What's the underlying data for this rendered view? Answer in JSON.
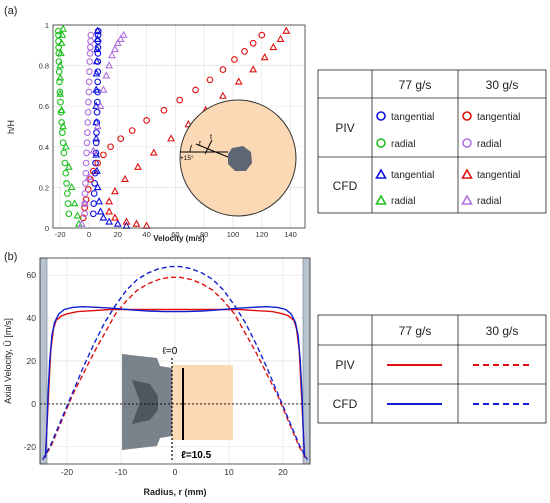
{
  "chart_data": [
    {
      "panel_label": "(a)",
      "type": "scatter",
      "xlabel": "Velocity (m/s)",
      "ylabel": "h/H",
      "xlim": [
        -25,
        150
      ],
      "ylim": [
        0,
        1
      ],
      "x_ticks": [
        "-20",
        "0",
        "20",
        "40",
        "60",
        "80",
        "100",
        "120",
        "140"
      ],
      "y_ticks": [
        "0",
        "0.2",
        "0.4",
        "0.6",
        "0.8",
        "1"
      ],
      "grid": true,
      "series": [
        {
          "method": "PIV",
          "flow": "77 g/s",
          "component": "tangential",
          "color": "#1010e0",
          "marker": "circle",
          "x": [
            3,
            3.3,
            3.6,
            3.9,
            4.2,
            4.5,
            4.8,
            5,
            5.2,
            5.4,
            5.6,
            5.8,
            6,
            6,
            6.1,
            6.1,
            6.2,
            6.2,
            6.3,
            6.3,
            6.4
          ],
          "y": [
            0.07,
            0.12,
            0.17,
            0.22,
            0.27,
            0.32,
            0.37,
            0.42,
            0.47,
            0.52,
            0.57,
            0.62,
            0.67,
            0.72,
            0.77,
            0.82,
            0.86,
            0.89,
            0.92,
            0.95,
            0.97
          ]
        },
        {
          "method": "PIV",
          "flow": "77 g/s",
          "component": "radial",
          "color": "#20c020",
          "marker": "circle",
          "x": [
            -14,
            -14.5,
            -15,
            -15.6,
            -16.2,
            -16.8,
            -17.4,
            -18,
            -18.5,
            -19,
            -19.4,
            -19.8,
            -20.2,
            -20.5,
            -20.7,
            -20.9,
            -21,
            -21.1,
            -21.2,
            -21.2,
            -21.3
          ],
          "y": [
            0.07,
            0.12,
            0.17,
            0.22,
            0.27,
            0.32,
            0.37,
            0.42,
            0.47,
            0.52,
            0.57,
            0.62,
            0.67,
            0.72,
            0.77,
            0.82,
            0.86,
            0.89,
            0.92,
            0.95,
            0.97
          ]
        },
        {
          "method": "PIV",
          "flow": "30 g/s",
          "component": "tangential",
          "color": "#e01010",
          "marker": "circle",
          "x": [
            -4,
            -3,
            -2,
            -0.5,
            1,
            3,
            6,
            10,
            15,
            22,
            30,
            40,
            52,
            63,
            74,
            84,
            93,
            101,
            108,
            114,
            120
          ],
          "y": [
            0.05,
            0.1,
            0.14,
            0.19,
            0.24,
            0.28,
            0.32,
            0.36,
            0.4,
            0.44,
            0.48,
            0.53,
            0.58,
            0.63,
            0.68,
            0.73,
            0.78,
            0.83,
            0.87,
            0.91,
            0.95
          ]
        },
        {
          "method": "PIV",
          "flow": "30 g/s",
          "component": "radial",
          "color": "#b070e0",
          "marker": "circle",
          "x": [
            -3,
            -3,
            -2.8,
            -2.5,
            -2.2,
            -2,
            -1.7,
            -1.4,
            -1.1,
            -0.9,
            -0.6,
            -0.4,
            -0.1,
            0.1,
            0.3,
            0.5,
            0.7,
            0.9,
            1.1,
            1.3
          ],
          "y": [
            0.07,
            0.12,
            0.17,
            0.22,
            0.27,
            0.32,
            0.37,
            0.42,
            0.47,
            0.52,
            0.57,
            0.62,
            0.67,
            0.72,
            0.77,
            0.82,
            0.86,
            0.89,
            0.92,
            0.95
          ]
        },
        {
          "method": "CFD",
          "flow": "77 g/s",
          "component": "tangential",
          "color": "#1010e0",
          "marker": "triangle",
          "x": [
            26,
            20,
            14,
            10,
            8,
            7,
            6,
            5.5,
            5,
            5,
            5,
            5,
            5,
            5.2,
            5.4,
            5.6,
            5.8,
            6
          ],
          "y": [
            0.01,
            0.02,
            0.03,
            0.05,
            0.08,
            0.13,
            0.2,
            0.28,
            0.36,
            0.44,
            0.52,
            0.6,
            0.68,
            0.76,
            0.82,
            0.88,
            0.93,
            0.97
          ]
        },
        {
          "method": "CFD",
          "flow": "77 g/s",
          "component": "radial",
          "color": "#20c020",
          "marker": "triangle",
          "x": [
            -7,
            -8,
            -10,
            -12,
            -14,
            -16,
            -18,
            -19,
            -20,
            -20,
            -20,
            -19.5,
            -19,
            -18.5,
            -18
          ],
          "y": [
            0.02,
            0.06,
            0.12,
            0.2,
            0.3,
            0.4,
            0.5,
            0.58,
            0.66,
            0.74,
            0.8,
            0.86,
            0.91,
            0.95,
            0.98
          ]
        },
        {
          "method": "CFD",
          "flow": "30 g/s",
          "component": "tangential",
          "color": "#e01010",
          "marker": "triangle",
          "x": [
            40,
            33,
            26,
            18,
            14,
            14,
            18,
            25,
            34,
            45,
            57,
            69,
            81,
            93,
            104,
            114,
            122,
            128,
            133,
            137
          ],
          "y": [
            0.01,
            0.02,
            0.03,
            0.05,
            0.08,
            0.13,
            0.18,
            0.24,
            0.3,
            0.37,
            0.44,
            0.51,
            0.58,
            0.65,
            0.72,
            0.78,
            0.84,
            0.89,
            0.93,
            0.97
          ]
        },
        {
          "method": "CFD",
          "flow": "30 g/s",
          "component": "radial",
          "color": "#b070e0",
          "marker": "triangle",
          "x": [
            -5,
            -3,
            0,
            3,
            6,
            8,
            10,
            12,
            14,
            16,
            18,
            20,
            22,
            24
          ],
          "y": [
            0.02,
            0.12,
            0.25,
            0.38,
            0.5,
            0.6,
            0.68,
            0.75,
            0.8,
            0.85,
            0.88,
            0.91,
            0.93,
            0.95
          ]
        }
      ]
    },
    {
      "panel_label": "(b)",
      "type": "line",
      "xlabel": "Radius, r (mm)",
      "ylabel": "Axial Velocity, Ū [m/s]",
      "xlim": [
        -25,
        25
      ],
      "ylim": [
        -28,
        68
      ],
      "x_ticks": [
        "-20",
        "-10",
        "0",
        "10",
        "20"
      ],
      "y_ticks": [
        "-20",
        "0",
        "20",
        "40",
        "60"
      ],
      "grid": true,
      "annotations": [
        "ℓ=0",
        "ℓ=10.5"
      ],
      "series": [
        {
          "method": "PIV",
          "flow": "77 g/s",
          "color": "#e01010",
          "dash": "solid",
          "x": [
            -24,
            -23.8,
            -23.4,
            -23,
            -22.5,
            -22,
            -21,
            -20,
            -18,
            -15,
            -12,
            -9,
            -6,
            -3,
            0,
            3,
            6,
            9,
            12,
            15,
            18,
            20,
            21,
            22,
            22.5,
            23,
            23.4,
            23.8,
            24
          ],
          "y": [
            -25,
            -15,
            5,
            25,
            35,
            39,
            41,
            42,
            43,
            43.5,
            44,
            44,
            44,
            44,
            44,
            44,
            44,
            44,
            44,
            43.5,
            43,
            42,
            41,
            39,
            35,
            25,
            5,
            -15,
            -25
          ]
        },
        {
          "method": "PIV",
          "flow": "30 g/s",
          "color": "#e01010",
          "dash": "dashed",
          "x": [
            -24.5,
            -23,
            -21,
            -19,
            -17,
            -15,
            -13,
            -11,
            -9,
            -7,
            -5,
            -3,
            -1,
            0,
            1,
            3,
            5,
            7,
            9,
            11,
            13,
            15,
            17,
            19,
            21,
            23,
            24.5
          ],
          "y": [
            -26,
            -20,
            -8,
            4,
            14,
            24,
            33,
            42,
            48,
            53,
            56,
            58,
            59,
            59,
            59,
            58,
            56,
            53,
            48,
            42,
            33,
            24,
            14,
            4,
            -8,
            -20,
            -26
          ]
        },
        {
          "method": "CFD",
          "flow": "77 g/s",
          "color": "#1020d0",
          "dash": "solid",
          "x": [
            -24,
            -23.8,
            -23.5,
            -23.2,
            -22.8,
            -22.3,
            -21.5,
            -20.5,
            -19,
            -17,
            -14,
            -11,
            -8,
            -5,
            -2,
            0,
            2,
            5,
            8,
            11,
            14,
            17,
            19,
            20.5,
            21.5,
            22.3,
            22.8,
            23.2,
            23.5,
            23.8,
            24
          ],
          "y": [
            -25,
            -15,
            5,
            20,
            32,
            38,
            42,
            44,
            45,
            45.3,
            45,
            44.5,
            43.8,
            43.3,
            43,
            43,
            43,
            43.3,
            43.8,
            44.5,
            45,
            45.3,
            45,
            44,
            42,
            38,
            32,
            20,
            5,
            -15,
            -25
          ]
        },
        {
          "method": "CFD",
          "flow": "30 g/s",
          "color": "#1020d0",
          "dash": "dashed",
          "x": [
            -24.5,
            -23,
            -21,
            -19,
            -17,
            -15,
            -13,
            -11,
            -9,
            -7,
            -5,
            -3,
            -1,
            0,
            1,
            3,
            5,
            7,
            9,
            11,
            13,
            15,
            17,
            19,
            21,
            23,
            24.5
          ],
          "y": [
            -26,
            -19,
            -7,
            5,
            17,
            28,
            38,
            46,
            53,
            58,
            61,
            63,
            64,
            64,
            64,
            63,
            61,
            58,
            53,
            46,
            38,
            28,
            17,
            5,
            -7,
            -19,
            -26
          ]
        }
      ]
    }
  ],
  "legend_a": {
    "col_77": "77 g/s",
    "col_30": "30 g/s",
    "row_piv": "PIV",
    "row_cfd": "CFD",
    "tangential": "tangential",
    "radial": "radial"
  },
  "legend_b": {
    "col_77": "77 g/s",
    "col_30": "30 g/s",
    "row_piv": "PIV",
    "row_cfd": "CFD"
  },
  "inset_a": {
    "r_label": "r",
    "t_label": "t",
    "angle_label": "+15°"
  },
  "colors": {
    "red": "#e01010",
    "blue": "#1010e0",
    "green": "#20c020",
    "purple": "#b070e0",
    "inset_fill": "#fbd9b5",
    "hub_fill": "#5e6673"
  }
}
